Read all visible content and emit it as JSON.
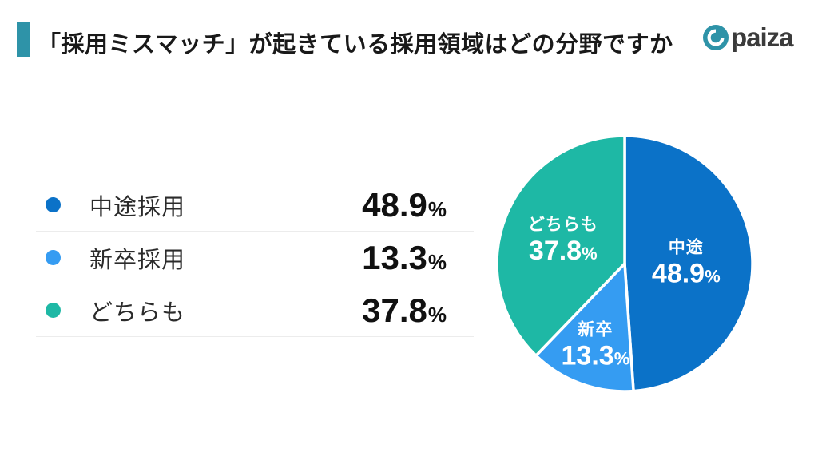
{
  "header": {
    "title": "「採用ミスマッチ」が起きている採用領域はどの分野ですか",
    "accent_color": "#2e93a8",
    "logo": {
      "text": "paiza",
      "icon": "paiza-circle-icon",
      "icon_color": "#2e93a8"
    }
  },
  "legend": {
    "items": [
      {
        "label": "中途採用",
        "value": "48.9",
        "unit": "%",
        "color": "#0b72c8"
      },
      {
        "label": "新卒採用",
        "value": "13.3",
        "unit": "%",
        "color": "#359cf2"
      },
      {
        "label": "どちらも",
        "value": "37.8",
        "unit": "%",
        "color": "#1eb8a5"
      }
    ]
  },
  "chart_data": {
    "type": "pie",
    "title": "「採用ミスマッチ」が起きている採用領域はどの分野ですか",
    "categories": [
      "中途採用",
      "新卒採用",
      "どちらも"
    ],
    "values": [
      48.9,
      13.3,
      37.8
    ],
    "unit": "%",
    "slices": [
      {
        "label": "中途",
        "value": 48.9,
        "display": "48.9",
        "color": "#0b72c8",
        "label_radius_frac": 0.48
      },
      {
        "label": "新卒",
        "value": 13.3,
        "display": "13.3",
        "color": "#359cf2",
        "label_radius_frac": 0.67
      },
      {
        "label": "どちらも",
        "value": 37.8,
        "display": "37.8",
        "color": "#1eb8a5",
        "label_radius_frac": 0.52
      }
    ],
    "start_angle_deg": 0,
    "direction": "clockwise",
    "legend_position": "left",
    "gap_stroke_color": "#ffffff",
    "label_text_color": "#ffffff"
  }
}
